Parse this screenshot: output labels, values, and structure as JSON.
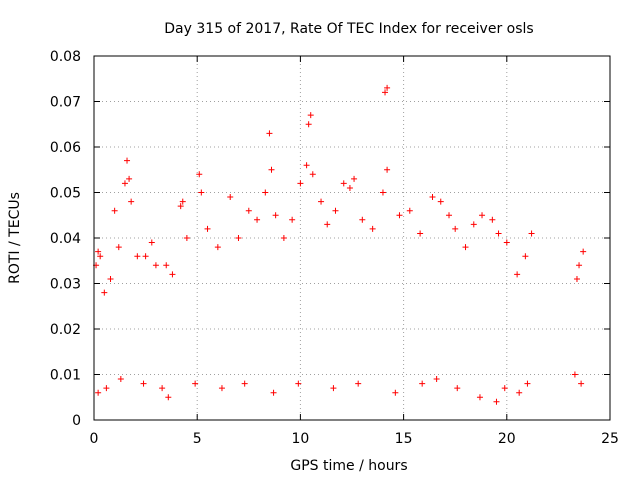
{
  "chart_data": {
    "type": "scatter",
    "title": "Day 315 of 2017, Rate Of TEC Index for receiver osls",
    "xlabel": "GPS time / hours",
    "ylabel": "ROTI / TECUs",
    "xlim": [
      0,
      25
    ],
    "ylim": [
      0,
      0.08
    ],
    "x_ticks": [
      0,
      5,
      10,
      15,
      20,
      25
    ],
    "y_ticks": [
      0,
      0.01,
      0.02,
      0.03,
      0.04,
      0.05,
      0.06,
      0.07,
      0.08
    ],
    "x_tick_labels": [
      "0",
      "5",
      "10",
      "15",
      "20",
      "25"
    ],
    "y_tick_labels": [
      "0",
      "0.01",
      "0.02",
      "0.03",
      "0.04",
      "0.05",
      "0.06",
      "0.07",
      "0.08"
    ],
    "grid": true,
    "marker": "+",
    "colors": {
      "marker": "#ff0000",
      "grid": "#a0a0a0",
      "axes": "#000000"
    },
    "series": [
      {
        "points": [
          [
            0.1,
            0.034
          ],
          [
            0.2,
            0.037
          ],
          [
            0.3,
            0.036
          ],
          [
            0.5,
            0.028
          ],
          [
            0.8,
            0.031
          ],
          [
            1.0,
            0.046
          ],
          [
            1.2,
            0.038
          ],
          [
            1.5,
            0.052
          ],
          [
            1.6,
            0.057
          ],
          [
            1.7,
            0.053
          ],
          [
            1.8,
            0.048
          ],
          [
            2.1,
            0.036
          ],
          [
            2.5,
            0.036
          ],
          [
            2.8,
            0.039
          ],
          [
            3.0,
            0.034
          ],
          [
            3.5,
            0.034
          ],
          [
            3.8,
            0.032
          ],
          [
            4.2,
            0.047
          ],
          [
            4.3,
            0.048
          ],
          [
            4.5,
            0.04
          ],
          [
            5.1,
            0.054
          ],
          [
            5.2,
            0.05
          ],
          [
            5.5,
            0.042
          ],
          [
            6.0,
            0.038
          ],
          [
            6.6,
            0.049
          ],
          [
            7.0,
            0.04
          ],
          [
            7.5,
            0.046
          ],
          [
            7.9,
            0.044
          ],
          [
            8.3,
            0.05
          ],
          [
            8.5,
            0.063
          ],
          [
            8.6,
            0.055
          ],
          [
            8.8,
            0.045
          ],
          [
            9.2,
            0.04
          ],
          [
            9.6,
            0.044
          ],
          [
            10.0,
            0.052
          ],
          [
            10.3,
            0.056
          ],
          [
            10.4,
            0.065
          ],
          [
            10.5,
            0.067
          ],
          [
            10.6,
            0.054
          ],
          [
            11.0,
            0.048
          ],
          [
            11.3,
            0.043
          ],
          [
            11.7,
            0.046
          ],
          [
            12.1,
            0.052
          ],
          [
            12.4,
            0.051
          ],
          [
            12.6,
            0.053
          ],
          [
            13.0,
            0.044
          ],
          [
            13.5,
            0.042
          ],
          [
            14.0,
            0.05
          ],
          [
            14.1,
            0.072
          ],
          [
            14.2,
            0.073
          ],
          [
            14.2,
            0.055
          ],
          [
            14.8,
            0.045
          ],
          [
            15.3,
            0.046
          ],
          [
            15.8,
            0.041
          ],
          [
            16.4,
            0.049
          ],
          [
            16.8,
            0.048
          ],
          [
            17.2,
            0.045
          ],
          [
            17.5,
            0.042
          ],
          [
            18.0,
            0.038
          ],
          [
            18.4,
            0.043
          ],
          [
            18.8,
            0.045
          ],
          [
            19.3,
            0.044
          ],
          [
            19.6,
            0.041
          ],
          [
            20.0,
            0.039
          ],
          [
            20.5,
            0.032
          ],
          [
            20.9,
            0.036
          ],
          [
            21.2,
            0.041
          ],
          [
            23.4,
            0.031
          ],
          [
            23.5,
            0.034
          ],
          [
            23.7,
            0.037
          ],
          [
            0.2,
            0.006
          ],
          [
            0.6,
            0.007
          ],
          [
            1.3,
            0.009
          ],
          [
            2.4,
            0.008
          ],
          [
            3.3,
            0.007
          ],
          [
            3.6,
            0.005
          ],
          [
            4.9,
            0.008
          ],
          [
            6.2,
            0.007
          ],
          [
            7.3,
            0.008
          ],
          [
            8.7,
            0.006
          ],
          [
            9.9,
            0.008
          ],
          [
            11.6,
            0.007
          ],
          [
            12.8,
            0.008
          ],
          [
            14.6,
            0.006
          ],
          [
            15.9,
            0.008
          ],
          [
            16.6,
            0.009
          ],
          [
            17.6,
            0.007
          ],
          [
            18.7,
            0.005
          ],
          [
            19.5,
            0.004
          ],
          [
            19.9,
            0.007
          ],
          [
            20.6,
            0.006
          ],
          [
            21.0,
            0.008
          ],
          [
            23.6,
            0.008
          ],
          [
            23.3,
            0.01
          ]
        ]
      }
    ]
  }
}
